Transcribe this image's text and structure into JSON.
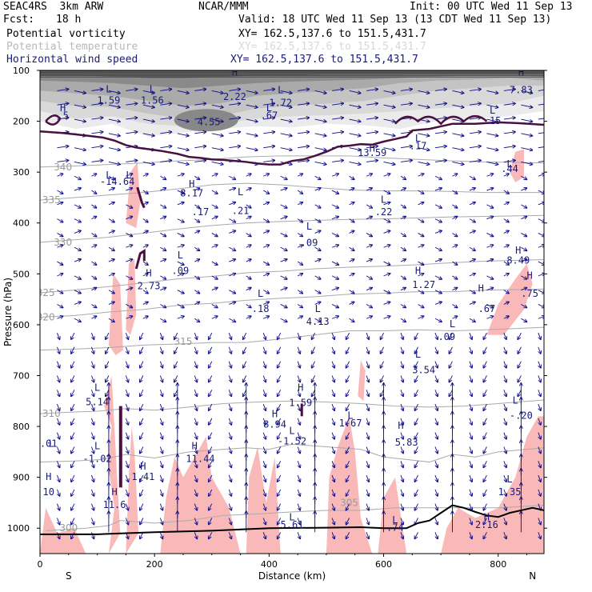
{
  "header": {
    "model": "SEAC4RS  3km ARW",
    "org": "NCAR/MMM",
    "init": "Init: 00 UTC Wed 11 Sep 13",
    "fcst_label": "Fcst:",
    "fcst_value": "18 h",
    "valid": "Valid: 18 UTC Wed 11 Sep 13 (13 CDT Wed 11 Sep 13)"
  },
  "fields": [
    {
      "name": "Potential vorticity",
      "xy": "XY= 162.5,137.6 to 151.5,431.7",
      "color": "#000000",
      "xy_color": "#000000"
    },
    {
      "name": "Potential temperature",
      "xy": "XY= 162.5,137.6 to 151.5,431.7",
      "color": "#b8b8b8",
      "xy_color": "#d8d8d8"
    },
    {
      "name": "Horizontal wind speed",
      "xy": "XY= 162.5,137.6 to 151.5,431.7",
      "color": "#1a1a7a",
      "xy_color": "#1a1a7a"
    }
  ],
  "colors": {
    "theta_contour": "#aaaaaa",
    "pv_contour": "#4a1040",
    "wind_vector": "#0a0a8c",
    "shading": "#f9b9b9",
    "upper_shading_dark": "#555555",
    "upper_shading_light": "#d6d6d6",
    "terrain": "#000000"
  },
  "chart_data": {
    "type": "cross-section",
    "xlabel": "Distance (km)",
    "ylabel": "Pressure (hPa)",
    "xlim": [
      0,
      880
    ],
    "ylim": [
      1050,
      100
    ],
    "x_ticks": [
      0,
      200,
      400,
      600,
      800
    ],
    "y_ticks": [
      100,
      200,
      300,
      400,
      500,
      600,
      700,
      800,
      900,
      1000
    ],
    "x_end_labels": {
      "left": "S",
      "right": "N"
    },
    "theta_isentropes": [
      {
        "label": "300",
        "points": [
          [
            10,
            1005
          ],
          [
            80,
            1000
          ],
          [
            120,
            995
          ],
          [
            140,
            985
          ],
          [
            200,
            990
          ],
          [
            260,
            985
          ],
          [
            320,
            975
          ],
          [
            380,
            972
          ],
          [
            440,
            968
          ],
          [
            500,
            965
          ],
          [
            560,
            965
          ],
          [
            620,
            960
          ],
          [
            680,
            960
          ],
          [
            740,
            960
          ],
          [
            800,
            960
          ],
          [
            880,
            955
          ]
        ],
        "label_pos": [
          50,
          1000
        ]
      },
      {
        "label": "305",
        "points": [
          [
            0,
            870
          ],
          [
            60,
            868
          ],
          [
            110,
            865
          ],
          [
            150,
            855
          ],
          [
            200,
            862
          ],
          [
            260,
            850
          ],
          [
            320,
            845
          ],
          [
            360,
            842
          ],
          [
            400,
            845
          ],
          [
            440,
            835
          ],
          [
            500,
            840
          ],
          [
            560,
            845
          ],
          [
            600,
            860
          ],
          [
            640,
            865
          ],
          [
            680,
            870
          ],
          [
            720,
            855
          ],
          [
            760,
            860
          ],
          [
            800,
            850
          ],
          [
            880,
            842
          ]
        ],
        "label_pos": [
          540,
          950
        ]
      },
      {
        "label": "310",
        "points": [
          [
            0,
            775
          ],
          [
            50,
            772
          ],
          [
            100,
            770
          ],
          [
            150,
            765
          ],
          [
            200,
            768
          ],
          [
            260,
            762
          ],
          [
            320,
            755
          ],
          [
            380,
            752
          ],
          [
            440,
            750
          ],
          [
            500,
            752
          ],
          [
            560,
            755
          ],
          [
            620,
            760
          ],
          [
            680,
            762
          ],
          [
            740,
            760
          ],
          [
            800,
            755
          ],
          [
            880,
            748
          ]
        ],
        "label_pos": [
          20,
          775
        ]
      },
      {
        "label": "315",
        "points": [
          [
            0,
            650
          ],
          [
            60,
            648
          ],
          [
            120,
            645
          ],
          [
            180,
            640
          ],
          [
            240,
            638
          ],
          [
            300,
            635
          ],
          [
            360,
            635
          ],
          [
            420,
            628
          ],
          [
            480,
            620
          ],
          [
            540,
            612
          ],
          [
            600,
            612
          ],
          [
            660,
            610
          ],
          [
            720,
            612
          ],
          [
            780,
            610
          ],
          [
            880,
            605
          ]
        ],
        "label_pos": [
          250,
          633
        ]
      },
      {
        "label": "320",
        "points": [
          [
            0,
            585
          ],
          [
            60,
            582
          ],
          [
            120,
            575
          ],
          [
            180,
            570
          ],
          [
            240,
            562
          ],
          [
            300,
            558
          ],
          [
            360,
            552
          ],
          [
            420,
            548
          ],
          [
            480,
            545
          ],
          [
            540,
            540
          ],
          [
            600,
            538
          ],
          [
            660,
            535
          ],
          [
            720,
            535
          ],
          [
            780,
            532
          ],
          [
            880,
            530
          ]
        ],
        "label_pos": [
          10,
          585
        ]
      },
      {
        "label": "325",
        "points": [
          [
            0,
            537
          ],
          [
            60,
            532
          ],
          [
            120,
            525
          ],
          [
            180,
            518
          ],
          [
            240,
            510
          ],
          [
            300,
            505
          ],
          [
            360,
            498
          ],
          [
            420,
            495
          ],
          [
            480,
            490
          ],
          [
            540,
            487
          ],
          [
            600,
            485
          ],
          [
            660,
            482
          ],
          [
            720,
            478
          ],
          [
            780,
            475
          ],
          [
            880,
            472
          ]
        ],
        "label_pos": [
          10,
          537
        ]
      },
      {
        "label": "330",
        "points": [
          [
            0,
            438
          ],
          [
            60,
            433
          ],
          [
            120,
            428
          ],
          [
            180,
            420
          ],
          [
            240,
            412
          ],
          [
            300,
            405
          ],
          [
            360,
            400
          ],
          [
            420,
            397
          ],
          [
            480,
            395
          ],
          [
            540,
            393
          ],
          [
            600,
            392
          ],
          [
            660,
            390
          ],
          [
            720,
            388
          ],
          [
            780,
            387
          ],
          [
            880,
            385
          ]
        ],
        "label_pos": [
          40,
          438
        ]
      },
      {
        "label": "335",
        "points": [
          [
            0,
            355
          ],
          [
            60,
            350
          ],
          [
            120,
            345
          ],
          [
            180,
            340
          ],
          [
            240,
            333
          ],
          [
            300,
            325
          ],
          [
            360,
            322
          ],
          [
            420,
            325
          ],
          [
            480,
            330
          ],
          [
            540,
            335
          ],
          [
            600,
            337
          ],
          [
            660,
            337
          ],
          [
            720,
            338
          ],
          [
            780,
            340
          ],
          [
            880,
            340
          ]
        ],
        "label_pos": [
          20,
          355
        ]
      },
      {
        "label": "340",
        "points": [
          [
            0,
            290
          ],
          [
            60,
            288
          ],
          [
            120,
            285
          ],
          [
            180,
            282
          ],
          [
            240,
            278
          ],
          [
            300,
            275
          ],
          [
            360,
            270
          ],
          [
            420,
            268
          ],
          [
            480,
            268
          ],
          [
            540,
            268
          ],
          [
            600,
            272
          ],
          [
            660,
            275
          ],
          [
            720,
            278
          ],
          [
            780,
            280
          ],
          [
            880,
            282
          ]
        ],
        "label_pos": [
          40,
          290
        ]
      }
    ],
    "pv_tropopause": [
      [
        0,
        220
      ],
      [
        40,
        223
      ],
      [
        80,
        228
      ],
      [
        110,
        232
      ],
      [
        130,
        238
      ],
      [
        150,
        247
      ],
      [
        170,
        252
      ],
      [
        190,
        255
      ],
      [
        210,
        258
      ],
      [
        240,
        264
      ],
      [
        260,
        270
      ],
      [
        280,
        272
      ],
      [
        300,
        275
      ],
      [
        320,
        276
      ],
      [
        340,
        278
      ],
      [
        360,
        280
      ],
      [
        380,
        283
      ],
      [
        400,
        285
      ],
      [
        420,
        285
      ],
      [
        440,
        278
      ],
      [
        460,
        275
      ],
      [
        480,
        268
      ],
      [
        500,
        260
      ],
      [
        520,
        250
      ],
      [
        540,
        248
      ],
      [
        560,
        245
      ],
      [
        580,
        246
      ],
      [
        600,
        240
      ],
      [
        620,
        235
      ],
      [
        640,
        230
      ],
      [
        650,
        218
      ],
      [
        680,
        215
      ],
      [
        700,
        210
      ],
      [
        720,
        205
      ],
      [
        760,
        205
      ],
      [
        800,
        202
      ],
      [
        840,
        204
      ],
      [
        880,
        207
      ]
    ],
    "terrain_pressure": [
      [
        0,
        1012
      ],
      [
        100,
        1012
      ],
      [
        200,
        1008
      ],
      [
        300,
        1005
      ],
      [
        400,
        1000
      ],
      [
        500,
        999
      ],
      [
        560,
        998
      ],
      [
        600,
        1000
      ],
      [
        640,
        1000
      ],
      [
        660,
        990
      ],
      [
        680,
        985
      ],
      [
        700,
        970
      ],
      [
        720,
        955
      ],
      [
        740,
        960
      ],
      [
        760,
        968
      ],
      [
        780,
        975
      ],
      [
        800,
        978
      ],
      [
        820,
        970
      ],
      [
        840,
        965
      ],
      [
        860,
        960
      ],
      [
        880,
        965
      ]
    ],
    "annotations": [
      {
        "text": "H",
        "x": 40,
        "y": 180
      },
      {
        "text": ".5",
        "x": 40,
        "y": 195
      },
      {
        "text": "L",
        "x": 120,
        "y": 143
      },
      {
        "text": "1.59",
        "x": 120,
        "y": 165
      },
      {
        "text": "L",
        "x": 196,
        "y": 143
      },
      {
        "text": "1.56",
        "x": 196,
        "y": 165
      },
      {
        "text": "H",
        "x": 340,
        "y": 110
      },
      {
        "text": "2.22",
        "x": 340,
        "y": 158
      },
      {
        "text": "L",
        "x": 420,
        "y": 145
      },
      {
        "text": "1.72",
        "x": 420,
        "y": 170
      },
      {
        "text": "L",
        "x": 400,
        "y": 180
      },
      {
        "text": ".67",
        "x": 400,
        "y": 195
      },
      {
        "text": "4.55",
        "x": 295,
        "y": 208
      },
      {
        "text": "H",
        "x": 580,
        "y": 260
      },
      {
        "text": "13.59",
        "x": 580,
        "y": 268
      },
      {
        "text": "L",
        "x": 660,
        "y": 240
      },
      {
        "text": ".17",
        "x": 660,
        "y": 255
      },
      {
        "text": "L",
        "x": 790,
        "y": 185
      },
      {
        "text": ".15",
        "x": 790,
        "y": 205
      },
      {
        "text": "L",
        "x": 820,
        "y": 290
      },
      {
        "text": ".44",
        "x": 820,
        "y": 300
      },
      {
        "text": "H",
        "x": 840,
        "y": 110
      },
      {
        "text": "7.83",
        "x": 840,
        "y": 145
      },
      {
        "text": "L",
        "x": 120,
        "y": 312
      },
      {
        "text": "-14.64",
        "x": 135,
        "y": 325
      },
      {
        "text": "L",
        "x": 155,
        "y": 312
      },
      {
        "text": "H",
        "x": 265,
        "y": 330
      },
      {
        "text": "8.17",
        "x": 265,
        "y": 348
      },
      {
        "text": ".17",
        "x": 280,
        "y": 385
      },
      {
        "text": "L",
        "x": 350,
        "y": 345
      },
      {
        "text": ".21",
        "x": 350,
        "y": 382
      },
      {
        "text": "L",
        "x": 600,
        "y": 360
      },
      {
        "text": ".22",
        "x": 600,
        "y": 385
      },
      {
        "text": "L",
        "x": 470,
        "y": 413
      },
      {
        "text": ".09",
        "x": 470,
        "y": 445
      },
      {
        "text": "L",
        "x": 245,
        "y": 470
      },
      {
        "text": ".09",
        "x": 245,
        "y": 500
      },
      {
        "text": "H",
        "x": 190,
        "y": 505
      },
      {
        "text": "2.73",
        "x": 190,
        "y": 530
      },
      {
        "text": "H",
        "x": 660,
        "y": 500
      },
      {
        "text": "1.27",
        "x": 670,
        "y": 528
      },
      {
        "text": "H",
        "x": 835,
        "y": 460
      },
      {
        "text": "8.49",
        "x": 835,
        "y": 480
      },
      {
        "text": "H",
        "x": 770,
        "y": 535
      },
      {
        "text": ".67",
        "x": 780,
        "y": 575
      },
      {
        "text": "H",
        "x": 855,
        "y": 510
      },
      {
        "text": ".75",
        "x": 855,
        "y": 545
      },
      {
        "text": "L",
        "x": 385,
        "y": 545
      },
      {
        "text": ".18",
        "x": 385,
        "y": 575
      },
      {
        "text": "L",
        "x": 485,
        "y": 575
      },
      {
        "text": "4.13",
        "x": 485,
        "y": 600
      },
      {
        "text": "L",
        "x": 720,
        "y": 605
      },
      {
        "text": ".09",
        "x": 710,
        "y": 630
      },
      {
        "text": "L",
        "x": 660,
        "y": 665
      },
      {
        "text": "3.54",
        "x": 670,
        "y": 695
      },
      {
        "text": "L",
        "x": 100,
        "y": 730
      },
      {
        "text": "5.14",
        "x": 100,
        "y": 758
      },
      {
        "text": "H",
        "x": 455,
        "y": 730
      },
      {
        "text": "1.59",
        "x": 455,
        "y": 760
      },
      {
        "text": "H",
        "x": 410,
        "y": 782
      },
      {
        "text": "8.94",
        "x": 410,
        "y": 802
      },
      {
        "text": "L",
        "x": 542,
        "y": 785
      },
      {
        "text": "1.67",
        "x": 542,
        "y": 800
      },
      {
        "text": "H",
        "x": 630,
        "y": 805
      },
      {
        "text": "5.83",
        "x": 640,
        "y": 838
      },
      {
        "text": "L",
        "x": 440,
        "y": 815
      },
      {
        "text": "-1.52",
        "x": 440,
        "y": 835
      },
      {
        "text": "L",
        "x": 830,
        "y": 755
      },
      {
        "text": "-.20",
        "x": 840,
        "y": 785
      },
      {
        "text": "L",
        "x": 100,
        "y": 845
      },
      {
        "text": "-1.02",
        "x": 100,
        "y": 870
      },
      {
        "text": "H",
        "x": 270,
        "y": 845
      },
      {
        "text": "11.44",
        "x": 280,
        "y": 870
      },
      {
        "text": "L",
        "x": 20,
        "y": 840
      },
      {
        "text": ".01",
        "x": 15,
        "y": 840
      },
      {
        "text": "H",
        "x": 180,
        "y": 885
      },
      {
        "text": "1.41",
        "x": 180,
        "y": 905
      },
      {
        "text": "H",
        "x": 15,
        "y": 905
      },
      {
        "text": "10",
        "x": 15,
        "y": 935
      },
      {
        "text": "H",
        "x": 130,
        "y": 935
      },
      {
        "text": "11.6",
        "x": 130,
        "y": 960
      },
      {
        "text": "L",
        "x": 820,
        "y": 910
      },
      {
        "text": "1.35",
        "x": 820,
        "y": 935
      },
      {
        "text": "L",
        "x": 440,
        "y": 985
      },
      {
        "text": "5.61",
        "x": 440,
        "y": 1000
      },
      {
        "text": "H",
        "x": 780,
        "y": 985
      },
      {
        "text": "2.16",
        "x": 780,
        "y": 1000
      },
      {
        "text": "L",
        "x": 620,
        "y": 990
      },
      {
        "text": ".74",
        "x": 620,
        "y": 1005
      }
    ]
  }
}
